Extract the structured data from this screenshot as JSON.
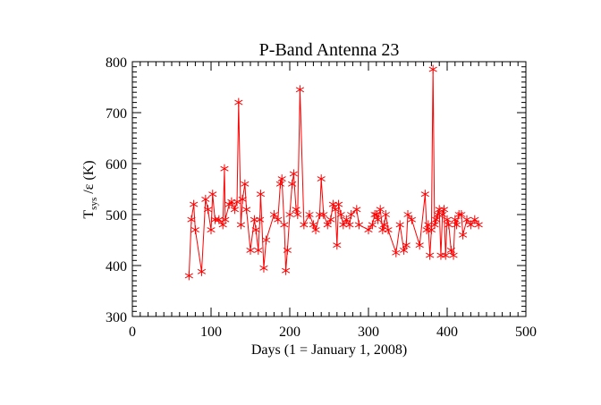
{
  "chart_data": {
    "type": "line",
    "title": "P-Band Antenna 23",
    "xlabel": "Days (1 =  January 1, 2008)",
    "ylabel_main": "T",
    "ylabel_sub": "sys",
    "ylabel_rest": " /ε (K)",
    "xlim": [
      0,
      500
    ],
    "ylim": [
      300,
      800
    ],
    "xticks": [
      0,
      100,
      200,
      300,
      400,
      500
    ],
    "yticks": [
      300,
      400,
      500,
      600,
      700,
      800
    ],
    "grid": false,
    "marker": "asterisk",
    "color": "#ff0000",
    "series": [
      {
        "x": [
          72,
          75,
          78,
          80,
          88,
          93,
          96,
          100,
          102,
          105,
          110,
          115,
          117,
          118,
          123,
          126,
          130,
          133,
          135,
          138,
          140,
          143,
          145,
          150,
          155,
          157,
          160,
          162,
          163,
          167,
          170,
          180,
          185,
          188,
          190,
          193,
          195,
          197,
          200,
          203,
          205,
          208,
          210,
          213,
          218,
          225,
          230,
          233,
          238,
          240,
          243,
          248,
          252,
          255,
          258,
          260,
          262,
          265,
          268,
          272,
          276,
          278,
          285,
          288,
          300,
          305,
          308,
          310,
          312,
          315,
          318,
          320,
          322,
          325,
          335,
          340,
          345,
          348,
          350,
          355,
          365,
          372,
          374,
          376,
          378,
          380,
          382,
          384,
          386,
          388,
          390,
          392,
          394,
          396,
          398,
          400,
          402,
          405,
          408,
          410,
          412,
          415,
          418,
          420,
          425,
          430,
          435,
          440
        ],
        "y": [
          380,
          490,
          520,
          470,
          388,
          530,
          510,
          470,
          540,
          490,
          490,
          480,
          590,
          490,
          520,
          525,
          510,
          525,
          720,
          480,
          530,
          560,
          510,
          430,
          490,
          470,
          430,
          490,
          540,
          395,
          450,
          500,
          490,
          560,
          570,
          480,
          390,
          430,
          500,
          560,
          580,
          510,
          500,
          745,
          480,
          500,
          480,
          470,
          500,
          570,
          500,
          480,
          490,
          520,
          510,
          440,
          520,
          500,
          480,
          490,
          480,
          500,
          510,
          480,
          470,
          480,
          500,
          500,
          490,
          510,
          470,
          480,
          500,
          470,
          425,
          480,
          430,
          440,
          500,
          490,
          440,
          540,
          470,
          480,
          420,
          470,
          785,
          480,
          490,
          500,
          510,
          420,
          500,
          510,
          420,
          490,
          480,
          430,
          420,
          490,
          480,
          500,
          500,
          460,
          490,
          480,
          490,
          480
        ]
      }
    ]
  }
}
